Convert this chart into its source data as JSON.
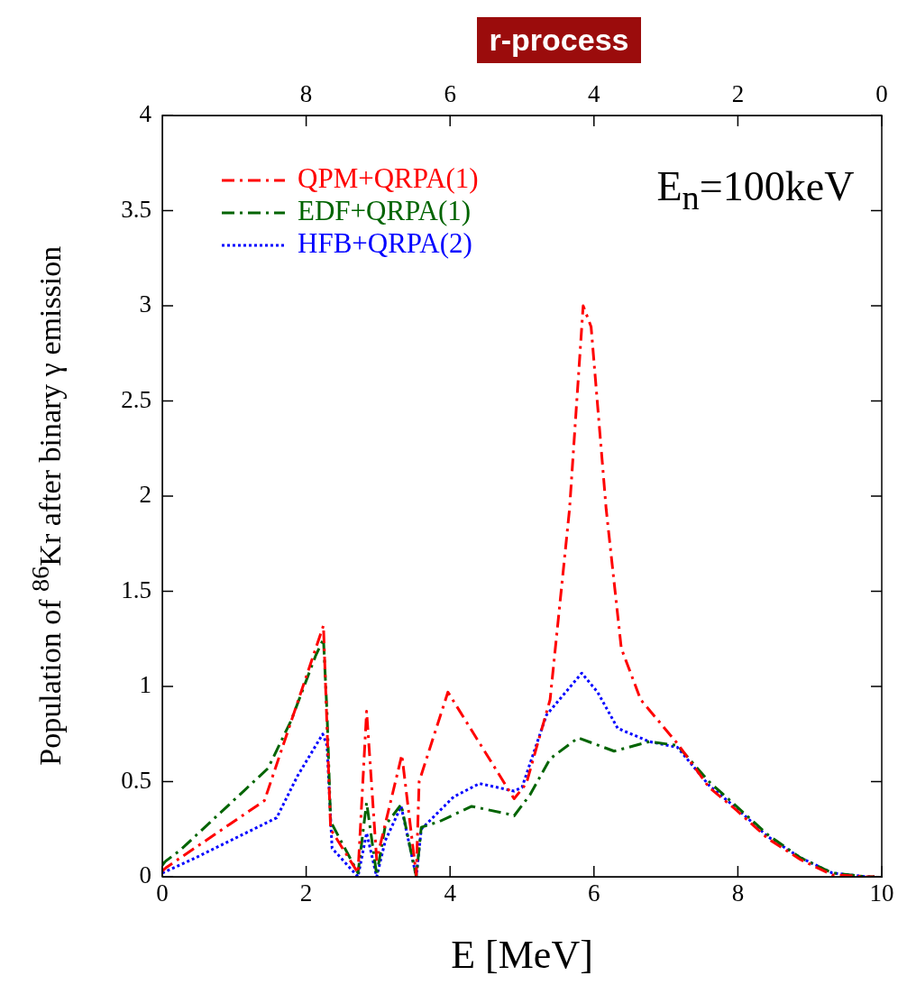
{
  "chart_data": {
    "type": "line",
    "xlabel": "E [MeV]",
    "ylabel": "Population of $^{86}$Kr after binary γ emission",
    "xlim": [
      0,
      10
    ],
    "xticks": [
      0,
      2,
      4,
      6,
      8,
      10
    ],
    "x2lim": [
      10,
      0
    ],
    "x2ticks": [
      0,
      2,
      4,
      6,
      8
    ],
    "ylim": [
      0,
      4
    ],
    "yticks": [
      0,
      0.5,
      1,
      1.5,
      2,
      2.5,
      3,
      3.5,
      4
    ],
    "grid": false,
    "legend": "top left",
    "marker": "none",
    "annotations": [
      "r-process",
      "E$_{n}$=100keV"
    ],
    "series": [
      {
        "name": "QPM+QRPA(1)",
        "color": "#ff0000",
        "line_style": "dashed",
        "x": [
          0.0,
          0.06,
          1.42,
          2.24,
          2.34,
          2.72,
          2.84,
          2.98,
          3.33,
          3.53,
          3.57,
          3.97,
          4.89,
          5.06,
          5.39,
          5.66,
          5.85,
          5.96,
          6.17,
          6.38,
          6.65,
          7.16,
          7.6,
          7.98,
          8.42,
          8.87,
          9.31,
          9.8,
          9.9
        ],
        "values": [
          0.03,
          0.05,
          0.4,
          1.32,
          0.25,
          0.02,
          0.87,
          0.09,
          0.64,
          0.01,
          0.5,
          0.97,
          0.41,
          0.49,
          0.93,
          1.93,
          3.0,
          2.89,
          1.93,
          1.2,
          0.93,
          0.7,
          0.47,
          0.35,
          0.2,
          0.09,
          0.01,
          0.0,
          0.0
        ]
      },
      {
        "name": "EDF+QRPA(1)",
        "color": "#006400",
        "line_style": "dashed",
        "x": [
          0.0,
          0.04,
          0.25,
          1.13,
          1.47,
          1.79,
          2.13,
          2.24,
          2.29,
          2.34,
          2.72,
          2.84,
          2.98,
          3.1,
          3.32,
          3.53,
          3.6,
          3.85,
          4.3,
          4.8,
          4.89,
          5.11,
          5.39,
          5.78,
          6.28,
          6.77,
          7.16,
          7.6,
          7.98,
          8.42,
          8.87,
          9.31,
          9.8,
          9.9
        ],
        "values": [
          0.06,
          0.08,
          0.14,
          0.45,
          0.57,
          0.82,
          1.16,
          1.25,
          0.86,
          0.29,
          0.02,
          0.39,
          0.01,
          0.27,
          0.38,
          0.0,
          0.26,
          0.29,
          0.37,
          0.33,
          0.32,
          0.43,
          0.62,
          0.73,
          0.66,
          0.71,
          0.69,
          0.5,
          0.37,
          0.22,
          0.1,
          0.02,
          0.0,
          0.0
        ]
      },
      {
        "name": "HFB+QRPA(2)",
        "color": "#0000ff",
        "line_style": "dotted",
        "x": [
          0.0,
          0.41,
          1.59,
          1.88,
          2.23,
          2.29,
          2.36,
          2.72,
          2.84,
          2.98,
          3.1,
          3.32,
          3.53,
          3.6,
          4.05,
          4.41,
          4.89,
          5.0,
          5.34,
          5.83,
          6.05,
          6.33,
          6.77,
          7.16,
          7.6,
          7.98,
          8.42,
          8.87,
          9.31,
          9.8,
          9.9
        ],
        "values": [
          0.02,
          0.09,
          0.31,
          0.53,
          0.75,
          0.69,
          0.15,
          0.0,
          0.23,
          0.0,
          0.19,
          0.37,
          0.0,
          0.25,
          0.42,
          0.49,
          0.45,
          0.47,
          0.85,
          1.07,
          0.97,
          0.78,
          0.71,
          0.68,
          0.48,
          0.36,
          0.21,
          0.1,
          0.02,
          0.0,
          0.0
        ]
      }
    ]
  }
}
